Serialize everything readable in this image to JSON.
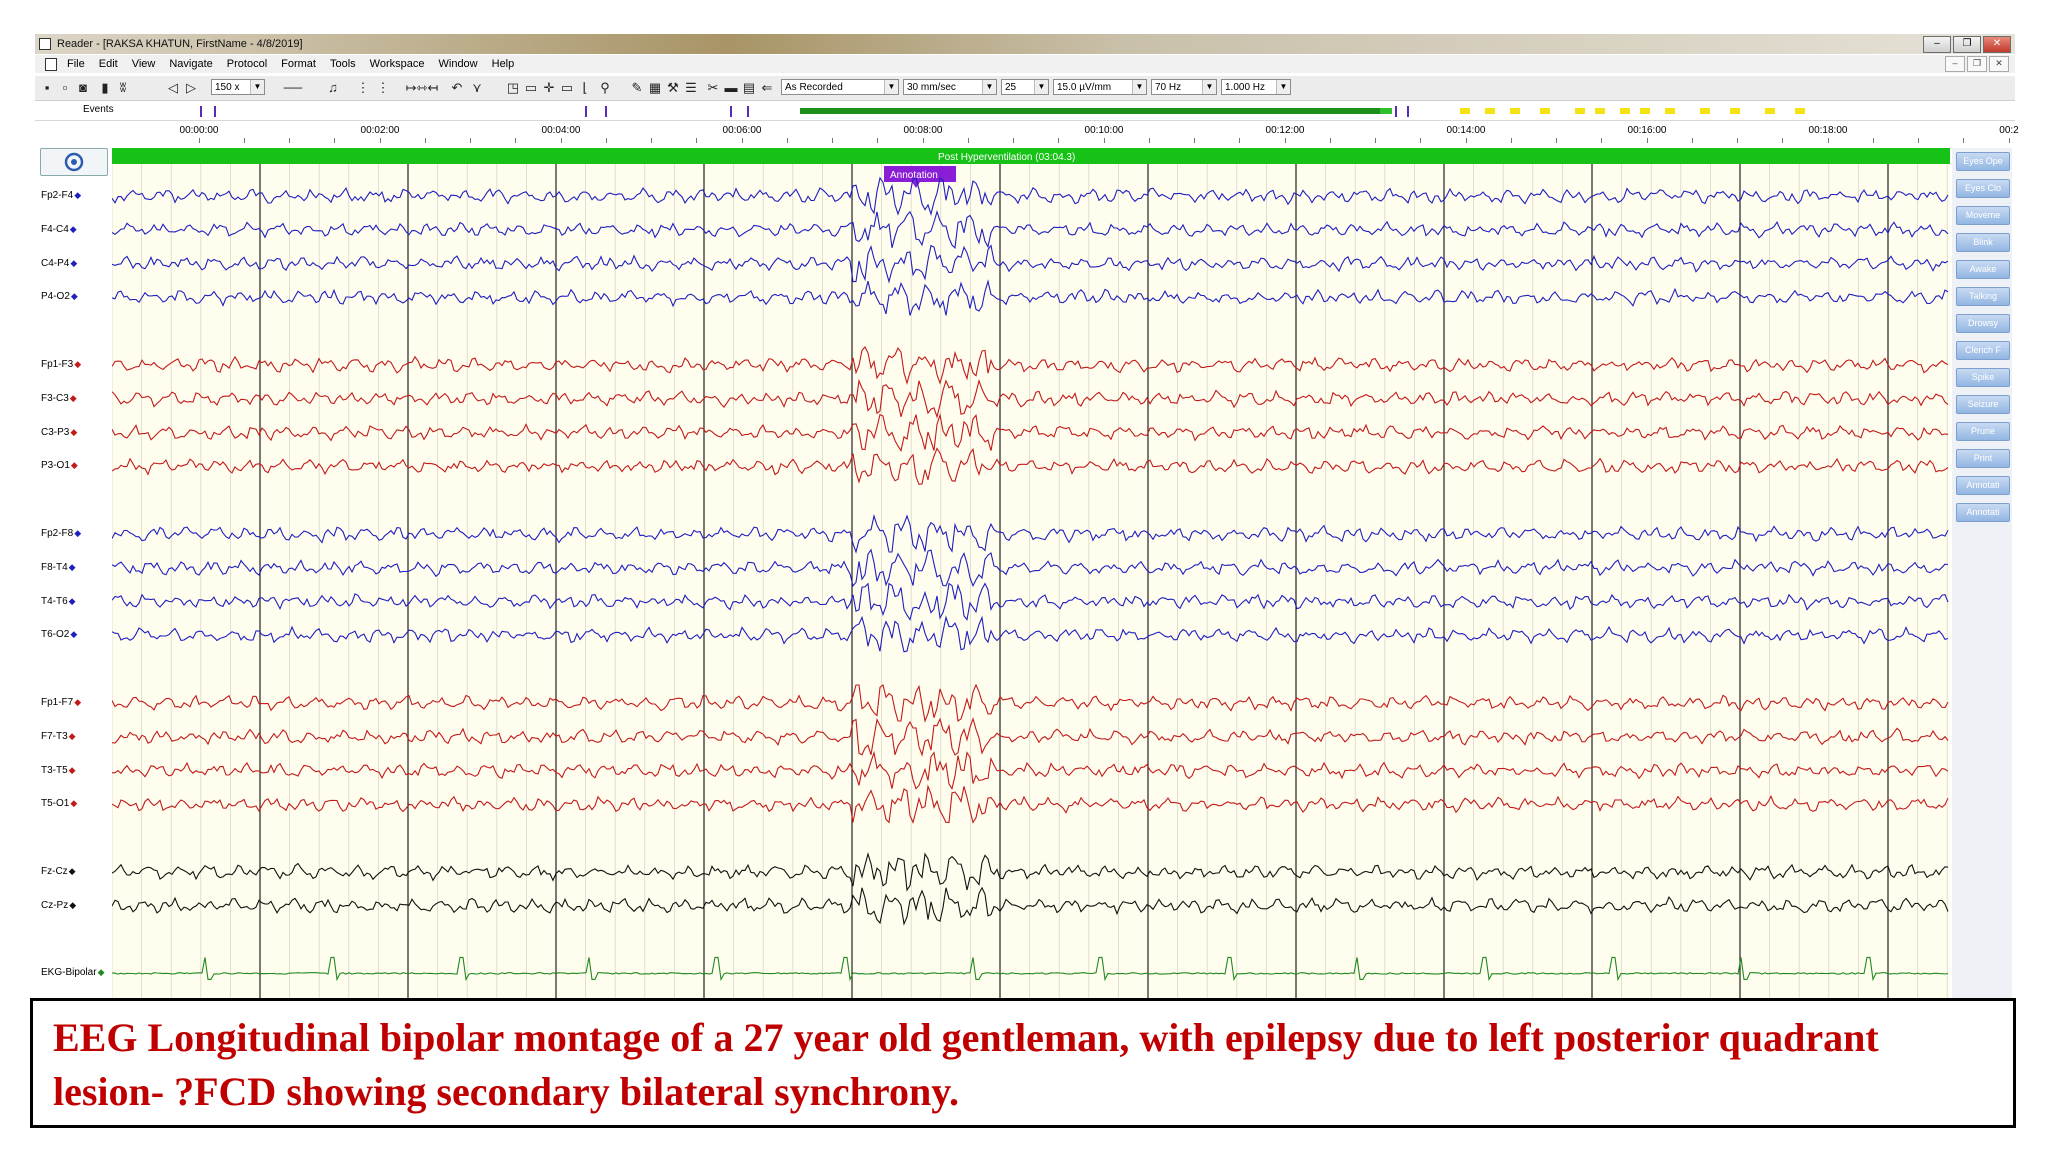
{
  "window": {
    "title": "Reader - [RAKSA KHATUN, FirstName - 4/8/2019]",
    "buttons": [
      "–",
      "❐",
      "✕"
    ]
  },
  "menu": {
    "items": [
      "File",
      "Edit",
      "View",
      "Navigate",
      "Protocol",
      "Format",
      "Tools",
      "Workspace",
      "Window",
      "Help"
    ],
    "mdi_buttons": [
      "–",
      "❐",
      "✕"
    ]
  },
  "toolbar": {
    "zoom": "150 x",
    "montage": "As Recorded",
    "paper_speed": "30 mm/sec",
    "ratio": "25",
    "sensitivity": "15.0 µV/mm",
    "high_filter": "70 Hz",
    "low_filter": "1.000 Hz"
  },
  "events": {
    "label": "Events",
    "recording_progress": 0.98
  },
  "timeline": {
    "ticks": [
      "00:00:00",
      "00:02:00",
      "00:04:00",
      "00:06:00",
      "00:08:00",
      "00:10:00",
      "00:12:00",
      "00:14:00",
      "00:16:00",
      "00:18:00",
      "00:2"
    ]
  },
  "recording": {
    "banner": "Post Hyperventilation (03:04.3)",
    "annotation": "Annotation"
  },
  "channels": [
    {
      "label": "Fp2-F4",
      "color": "#1f1fbf",
      "group": 0
    },
    {
      "label": "F4-C4",
      "color": "#1f1fbf",
      "group": 0
    },
    {
      "label": "C4-P4",
      "color": "#1f1fbf",
      "group": 0
    },
    {
      "label": "P4-O2",
      "color": "#1f1fbf",
      "group": 0
    },
    {
      "label": "Fp1-F3",
      "color": "#c21a1a",
      "group": 1
    },
    {
      "label": "F3-C3",
      "color": "#c21a1a",
      "group": 1
    },
    {
      "label": "C3-P3",
      "color": "#c21a1a",
      "group": 1
    },
    {
      "label": "P3-O1",
      "color": "#c21a1a",
      "group": 1
    },
    {
      "label": "Fp2-F8",
      "color": "#1f1fbf",
      "group": 2
    },
    {
      "label": "F8-T4",
      "color": "#1f1fbf",
      "group": 2
    },
    {
      "label": "T4-T6",
      "color": "#1f1fbf",
      "group": 2
    },
    {
      "label": "T6-O2",
      "color": "#1f1fbf",
      "group": 2
    },
    {
      "label": "Fp1-F7",
      "color": "#c21a1a",
      "group": 3
    },
    {
      "label": "F7-T3",
      "color": "#c21a1a",
      "group": 3
    },
    {
      "label": "T3-T5",
      "color": "#c21a1a",
      "group": 3
    },
    {
      "label": "T5-O1",
      "color": "#c21a1a",
      "group": 3
    },
    {
      "label": "Fz-Cz",
      "color": "#111111",
      "group": 4
    },
    {
      "label": "Cz-Pz",
      "color": "#111111",
      "group": 4
    },
    {
      "label": "EKG-Bipolar",
      "color": "#1f8a1f",
      "group": 5
    }
  ],
  "event_buttons": [
    "Eyes Ope",
    "Eyes Clo",
    "Moveme",
    "Blink",
    "Awake",
    "Talking",
    "Drowsy",
    "Clench F",
    "Spike",
    "Seizure",
    "Prune",
    "Print",
    "Annotati",
    "Annotati"
  ],
  "caption": "EEG Longitudinal bipolar montage of  a 27 year old gentleman, with epilepsy due to left posterior quadrant lesion- ?FCD showing secondary bilateral synchrony."
}
